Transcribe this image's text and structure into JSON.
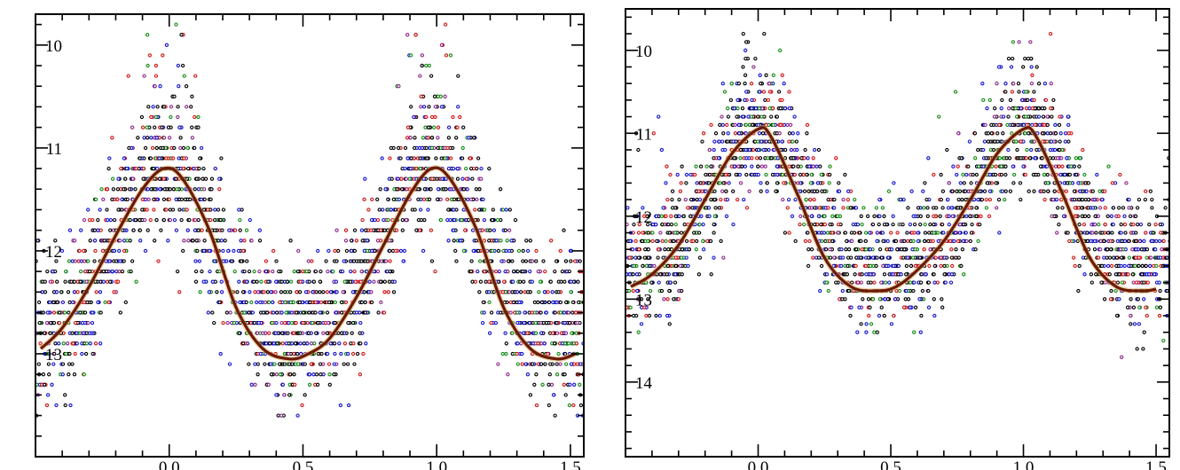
{
  "chart_data": [
    {
      "type": "scatter",
      "title": "",
      "xlabel": "",
      "ylabel": "",
      "xlim": [
        -0.5,
        1.55
      ],
      "ylim": [
        14.0,
        9.7
      ],
      "y_inverted": true,
      "grid": false,
      "legend": "none",
      "x_ticks": [
        "0.0",
        "0.5",
        "1.0",
        "1.5"
      ],
      "x_tick_values": [
        0.0,
        0.5,
        1.0,
        1.5
      ],
      "y_ticks": [
        "10",
        "11",
        "12",
        "13"
      ],
      "y_tick_values": [
        10,
        11,
        12,
        13
      ],
      "series": [
        {
          "kind": "fit-curve",
          "color": "#6b1a08",
          "x": [
            -0.48,
            -0.4,
            -0.3,
            -0.2,
            -0.1,
            -0.02,
            0.05,
            0.15,
            0.25,
            0.35,
            0.45,
            0.52,
            0.6,
            0.7,
            0.8,
            0.9,
            0.98,
            1.05,
            1.15,
            1.25,
            1.35,
            1.45,
            1.52
          ],
          "y": [
            12.95,
            12.75,
            12.35,
            11.85,
            11.4,
            11.2,
            11.3,
            11.8,
            12.55,
            12.95,
            13.05,
            13.0,
            12.85,
            12.45,
            11.95,
            11.45,
            11.2,
            11.3,
            11.8,
            12.55,
            12.95,
            13.05,
            13.0
          ]
        },
        {
          "kind": "observations",
          "colors": [
            "#000000",
            "#1414d2",
            "#d21414",
            "#148c14",
            "#8c288c"
          ],
          "amplitude_center": 12.1,
          "amplitude_halfwidth": 0.93,
          "peak_phase": -0.02,
          "scatter_range": [
            9.7,
            13.7
          ],
          "upper_envelope_phases": [
            -0.1,
            -0.05,
            0.0,
            0.05,
            0.9,
            0.95,
            1.0,
            1.05,
            0.35,
            0.5,
            1.35,
            1.48
          ],
          "upper_envelope_mags": [
            10.0,
            9.85,
            9.75,
            9.9,
            10.0,
            9.85,
            9.75,
            9.9,
            12.7,
            12.6,
            12.7,
            12.1
          ]
        }
      ]
    },
    {
      "type": "scatter",
      "title": "",
      "xlabel": "",
      "ylabel": "",
      "xlim": [
        -0.5,
        1.55
      ],
      "ylim": [
        14.9,
        9.5
      ],
      "y_inverted": true,
      "grid": false,
      "legend": "none",
      "x_ticks": [
        "0.0",
        "0.5",
        "1.0",
        "1.5"
      ],
      "x_tick_values": [
        0.0,
        0.5,
        1.0,
        1.5
      ],
      "y_ticks": [
        "10",
        "11",
        "12",
        "13",
        "14"
      ],
      "y_tick_values": [
        10,
        11,
        12,
        13,
        14
      ],
      "series": [
        {
          "kind": "fit-curve",
          "color": "#6b1a08",
          "x": [
            -0.48,
            -0.4,
            -0.3,
            -0.2,
            -0.1,
            0.0,
            0.05,
            0.15,
            0.25,
            0.35,
            0.45,
            0.52,
            0.6,
            0.7,
            0.8,
            0.9,
            1.0,
            1.05,
            1.15,
            1.25,
            1.35,
            1.45,
            1.5
          ],
          "y": [
            12.85,
            12.7,
            12.35,
            11.8,
            11.25,
            10.95,
            11.05,
            11.75,
            12.5,
            12.85,
            12.9,
            12.85,
            12.65,
            12.3,
            11.8,
            11.25,
            10.95,
            11.05,
            11.75,
            12.5,
            12.85,
            12.9,
            12.88
          ]
        },
        {
          "kind": "observations",
          "colors": [
            "#000000",
            "#1414d2",
            "#d21414",
            "#148c14",
            "#8c288c"
          ],
          "amplitude_center": 11.92,
          "amplitude_halfwidth": 0.97,
          "peak_phase": 0.0,
          "scatter_range": [
            9.7,
            14.1
          ],
          "upper_envelope_phases": [
            -0.05,
            0.0,
            0.05,
            0.95,
            1.0,
            1.05,
            -0.4,
            0.7,
            1.6
          ],
          "upper_envelope_mags": [
            9.8,
            9.7,
            9.8,
            9.8,
            9.7,
            9.8,
            10.7,
            10.5,
            10.7
          ]
        }
      ]
    }
  ]
}
